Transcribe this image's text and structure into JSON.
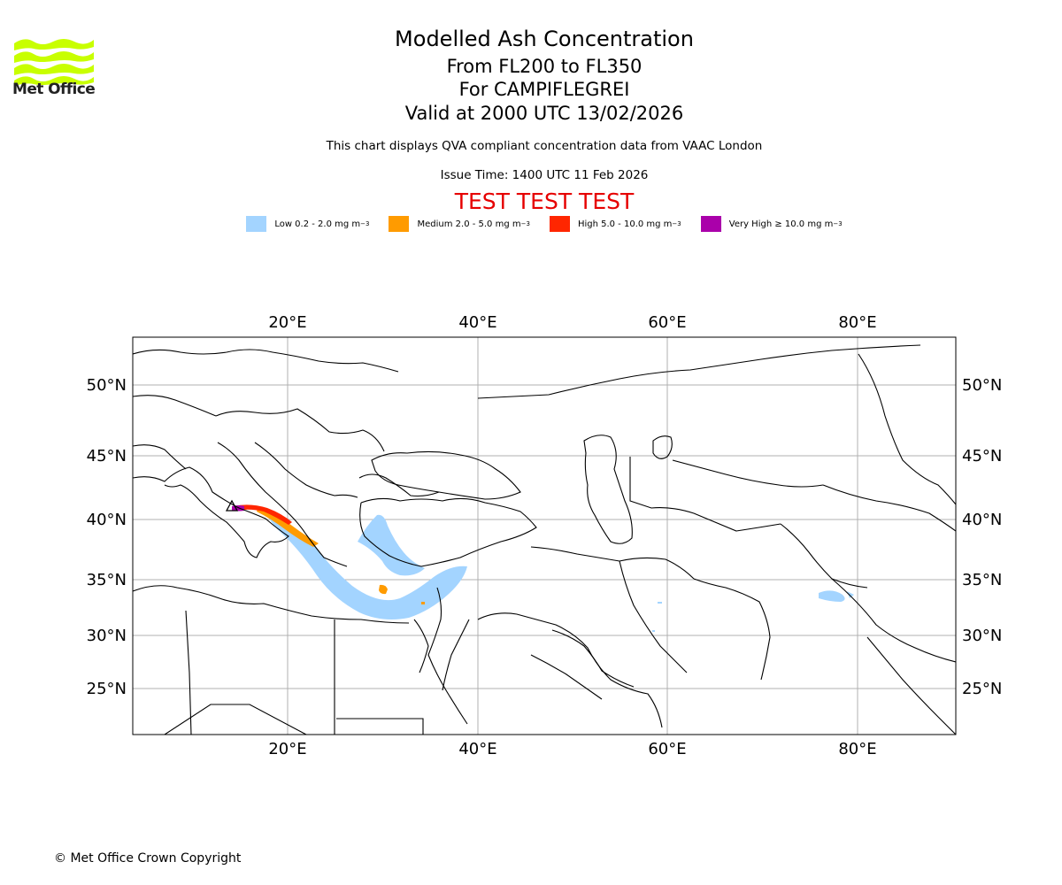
{
  "brand": {
    "name": "Met Office",
    "colors": {
      "logo": "#c8ff00"
    }
  },
  "header": {
    "title": "Modelled Ash Concentration",
    "levels": "From FL200 to FL350",
    "volcano": "For CAMPIFLEGREI",
    "valid": "Valid at 2000 UTC 13/02/2026",
    "note": "This chart displays QVA compliant concentration data from VAAC London",
    "issue": "Issue Time: 1400 UTC 11 Feb 2026",
    "test_banner": "TEST TEST TEST"
  },
  "legend": [
    {
      "label": "Low 0.2 - 2.0 mg m",
      "exp": "−3",
      "color": "#a3d4ff"
    },
    {
      "label": "Medium 2.0 - 5.0 mg m",
      "exp": "−3",
      "color": "#ff9b00"
    },
    {
      "label": "High 5.0 - 10.0 mg m",
      "exp": "−3",
      "color": "#ff2600"
    },
    {
      "label": "Very High ≥ 10.0 mg m",
      "exp": "−3",
      "color": "#aa00aa"
    }
  ],
  "map": {
    "lon_ticks": [
      "20°E",
      "40°E",
      "60°E",
      "80°E"
    ],
    "lat_ticks": [
      "50°N",
      "45°N",
      "40°N",
      "35°N",
      "30°N",
      "25°N"
    ],
    "extent": {
      "lon": [
        4,
        90
      ],
      "lat": [
        21,
        54
      ]
    },
    "gridlines": true,
    "source_volcano_marker": "triangle"
  },
  "footer": {
    "copyright": "© Met Office Crown Copyright"
  }
}
